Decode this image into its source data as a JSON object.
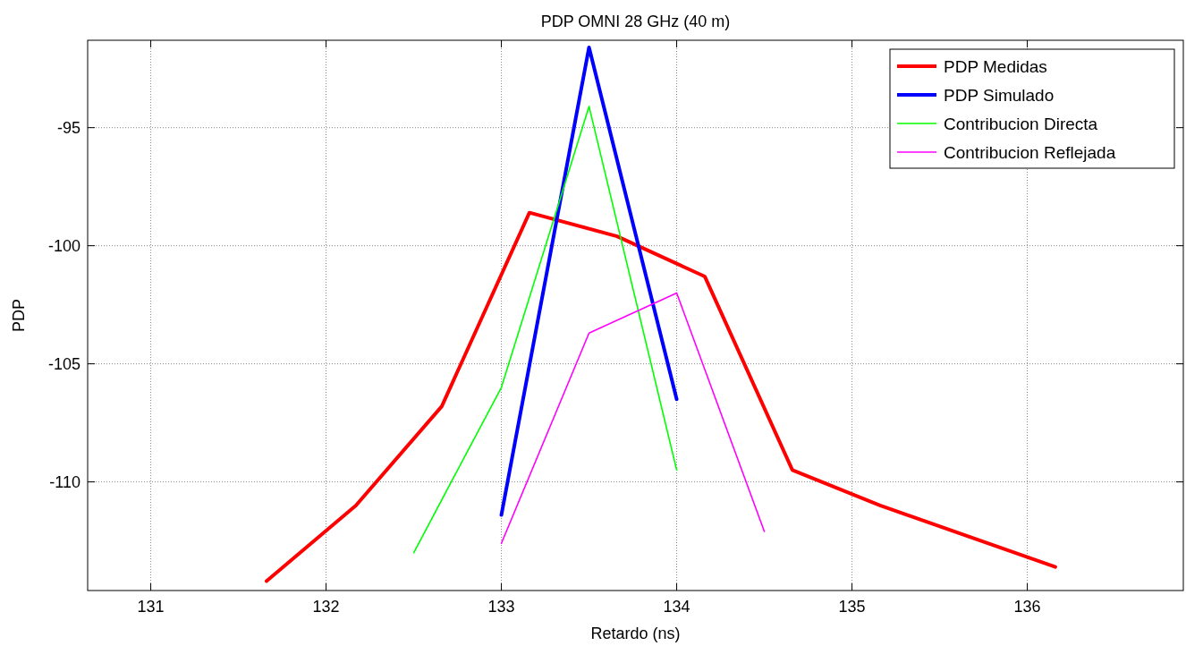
{
  "chart_data": {
    "type": "line",
    "title": "PDP OMNI 28 GHz (40 m)",
    "xlabel": "Retardo (ns)",
    "ylabel": "PDP",
    "xlim": [
      130.64,
      136.89
    ],
    "xticks": [
      131,
      132,
      133,
      134,
      135,
      136
    ],
    "ylim": [
      -114.6,
      -91.3
    ],
    "yticks": [
      -110,
      -105,
      -100,
      -95
    ],
    "grid": true,
    "legend": "top right",
    "line_style": "solid",
    "series": [
      {
        "name": "PDP Medidas",
        "color": "#ff0000",
        "x": [
          131.66,
          132.17,
          132.66,
          133.16,
          133.66,
          134.16,
          134.66,
          135.16,
          136.16
        ],
        "values": [
          -114.2,
          -111.0,
          -106.8,
          -98.6,
          -99.6,
          -101.3,
          -109.5,
          -111.0,
          -113.6
        ]
      },
      {
        "name": "PDP Simulado",
        "color": "#0000ff",
        "x": [
          133.0,
          133.5,
          134.0
        ],
        "values": [
          -111.4,
          -91.6,
          -106.5
        ]
      },
      {
        "name": "Contribucion Directa",
        "color": "#00ff00",
        "x": [
          132.5,
          133.0,
          133.5,
          134.0
        ],
        "values": [
          -113.0,
          -106.0,
          -94.1,
          -109.5
        ]
      },
      {
        "name": "Contribucion Reflejada",
        "color": "#ff00ff",
        "x": [
          133.0,
          133.5,
          134.0,
          134.5
        ],
        "values": [
          -112.6,
          -103.7,
          -102.0,
          -112.1
        ]
      }
    ]
  }
}
